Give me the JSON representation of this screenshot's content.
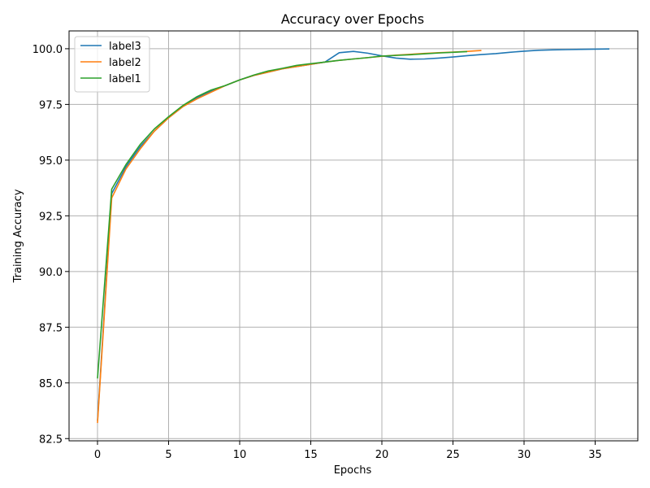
{
  "chart_data": {
    "type": "line",
    "title": "Accuracy over Epochs",
    "xlabel": "Epochs",
    "ylabel": "Training Accuracy",
    "xlim": [
      -2,
      38
    ],
    "ylim": [
      82.4,
      100.8
    ],
    "xticks": [
      0,
      5,
      10,
      15,
      20,
      25,
      30,
      35
    ],
    "yticks": [
      82.5,
      85.0,
      87.5,
      90.0,
      92.5,
      95.0,
      97.5,
      100.0
    ],
    "ytick_labels": [
      "82.5",
      "85.0",
      "87.5",
      "90.0",
      "92.5",
      "95.0",
      "97.5",
      "100.0"
    ],
    "grid": true,
    "legend_position": "top-left",
    "series": [
      {
        "name": "label3",
        "color": "#1f77b4",
        "x": [
          0,
          1,
          2,
          3,
          4,
          5,
          6,
          7,
          8,
          9,
          10,
          11,
          12,
          13,
          14,
          15,
          16,
          17,
          18,
          19,
          20,
          21,
          22,
          23,
          24,
          25,
          26,
          27,
          28,
          29,
          30,
          31,
          32,
          33,
          34,
          35,
          36
        ],
        "y": [
          83.3,
          93.5,
          94.7,
          95.6,
          96.3,
          96.9,
          97.4,
          97.8,
          98.1,
          98.35,
          98.6,
          98.8,
          98.95,
          99.1,
          99.2,
          99.3,
          99.4,
          99.82,
          99.88,
          99.8,
          99.68,
          99.58,
          99.53,
          99.54,
          99.58,
          99.63,
          99.69,
          99.74,
          99.78,
          99.84,
          99.89,
          99.93,
          99.95,
          99.96,
          99.97,
          99.98,
          99.99
        ]
      },
      {
        "name": "label2",
        "color": "#ff7f0e",
        "x": [
          0,
          1,
          2,
          3,
          4,
          5,
          6,
          7,
          8,
          9,
          10,
          11,
          12,
          13,
          14,
          15,
          16,
          17,
          18,
          19,
          20,
          21,
          22,
          23,
          24,
          25,
          26,
          27
        ],
        "y": [
          83.2,
          93.3,
          94.6,
          95.5,
          96.3,
          96.9,
          97.4,
          97.75,
          98.05,
          98.35,
          98.6,
          98.8,
          98.95,
          99.1,
          99.2,
          99.3,
          99.4,
          99.48,
          99.54,
          99.6,
          99.66,
          99.71,
          99.75,
          99.79,
          99.82,
          99.85,
          99.88,
          99.92
        ]
      },
      {
        "name": "label1",
        "color": "#2ca02c",
        "x": [
          0,
          1,
          2,
          3,
          4,
          5,
          6,
          7,
          8,
          9,
          10,
          11,
          12,
          13,
          14,
          15,
          16,
          17,
          18,
          19,
          20,
          21,
          22,
          23,
          24,
          25,
          26
        ],
        "y": [
          85.2,
          93.7,
          94.8,
          95.7,
          96.4,
          96.95,
          97.45,
          97.85,
          98.15,
          98.35,
          98.6,
          98.82,
          99.0,
          99.12,
          99.25,
          99.33,
          99.4,
          99.48,
          99.54,
          99.6,
          99.67,
          99.7,
          99.73,
          99.77,
          99.81,
          99.84,
          99.87
        ]
      }
    ]
  }
}
